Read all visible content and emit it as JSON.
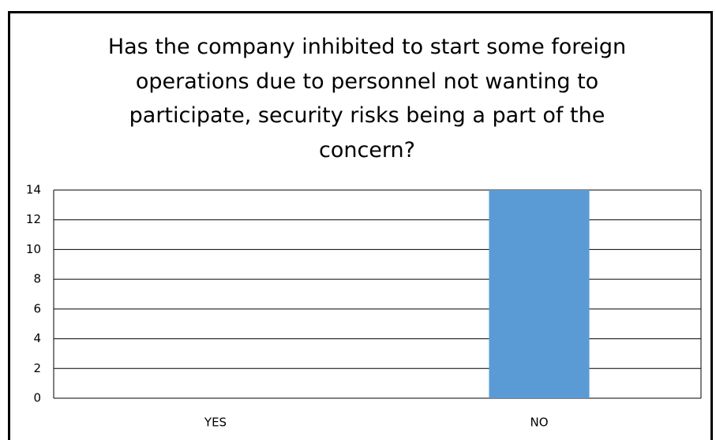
{
  "chart_data": {
    "type": "bar",
    "title": "Has the company inhibited to start some foreign operations due to personnel not wanting to participate, security risks being a part of the concern?",
    "categories": [
      "YES",
      "NO"
    ],
    "values": [
      0,
      14
    ],
    "color": "#5b9bd5",
    "ylim": [
      0,
      14
    ],
    "yticks": [
      0,
      2,
      4,
      6,
      8,
      10,
      12,
      14
    ],
    "grid": true
  }
}
